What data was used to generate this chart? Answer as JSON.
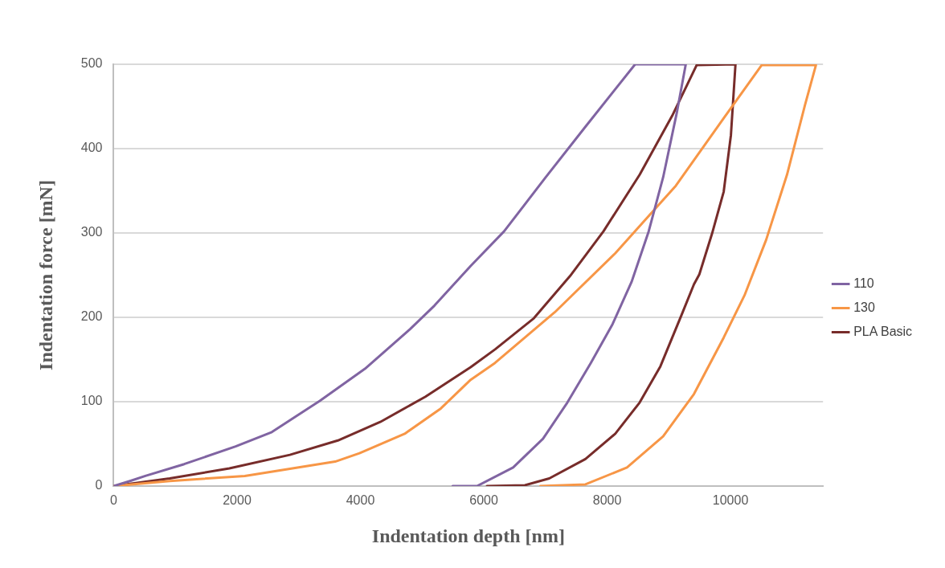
{
  "chart_data": {
    "type": "line",
    "xlabel": "Indentation depth [nm]",
    "ylabel": "Indentation force [mN]",
    "xlim": [
      0,
      11500
    ],
    "xticks": [
      0,
      2000,
      4000,
      6000,
      8000,
      10000
    ],
    "ylim": [
      0,
      500
    ],
    "yticks": [
      0,
      100,
      200,
      300,
      400,
      500
    ],
    "grid": "y",
    "legend": "right",
    "marker": "none",
    "line_style": "solid",
    "series": [
      {
        "name": "110",
        "color": "#8064a2",
        "x": [
          0,
          264,
          513,
          1143,
          1978,
          2564,
          3341,
          4073,
          4806,
          5201,
          5788,
          6330,
          7004,
          7648,
          8454,
          9275,
          9128,
          8908,
          8674,
          8396,
          8088,
          7736,
          7355,
          6960,
          6476,
          5890,
          5495
        ],
        "values": [
          0,
          6,
          12,
          26,
          47,
          64,
          101,
          139,
          186,
          214,
          261,
          302,
          366,
          426,
          500,
          500,
          442,
          366,
          302,
          242,
          192,
          146,
          99,
          56,
          22,
          0,
          0
        ]
      },
      {
        "name": "130",
        "color": "#f79646",
        "x": [
          0,
          908,
          2125,
          3590,
          3985,
          4718,
          5304,
          5788,
          6183,
          7150,
          8132,
          9114,
          9890,
          10505,
          11385,
          11209,
          10916,
          10579,
          10227,
          9890,
          9407,
          8908,
          8322,
          7648,
          6916
        ],
        "values": [
          0,
          6,
          12,
          29,
          39,
          62,
          92,
          126,
          146,
          206,
          276,
          356,
          436,
          499,
          499,
          452,
          369,
          292,
          226,
          176,
          109,
          59,
          22,
          2,
          0
        ]
      },
      {
        "name": "PLA Basic",
        "color": "#772c2a",
        "x": [
          0,
          908,
          1875,
          2857,
          3634,
          4322,
          5055,
          5788,
          6183,
          6813,
          7399,
          7941,
          8527,
          9055,
          9451,
          10081,
          10007,
          9890,
          9700,
          9495,
          9407,
          9202,
          8864,
          8527,
          8132,
          7648,
          7062,
          6667,
          6051
        ],
        "values": [
          0,
          9,
          21,
          37,
          54,
          76,
          106,
          141,
          162,
          199,
          249,
          302,
          369,
          439,
          499,
          500,
          416,
          349,
          299,
          251,
          239,
          202,
          142,
          99,
          62,
          32,
          9,
          1,
          0
        ]
      }
    ]
  }
}
